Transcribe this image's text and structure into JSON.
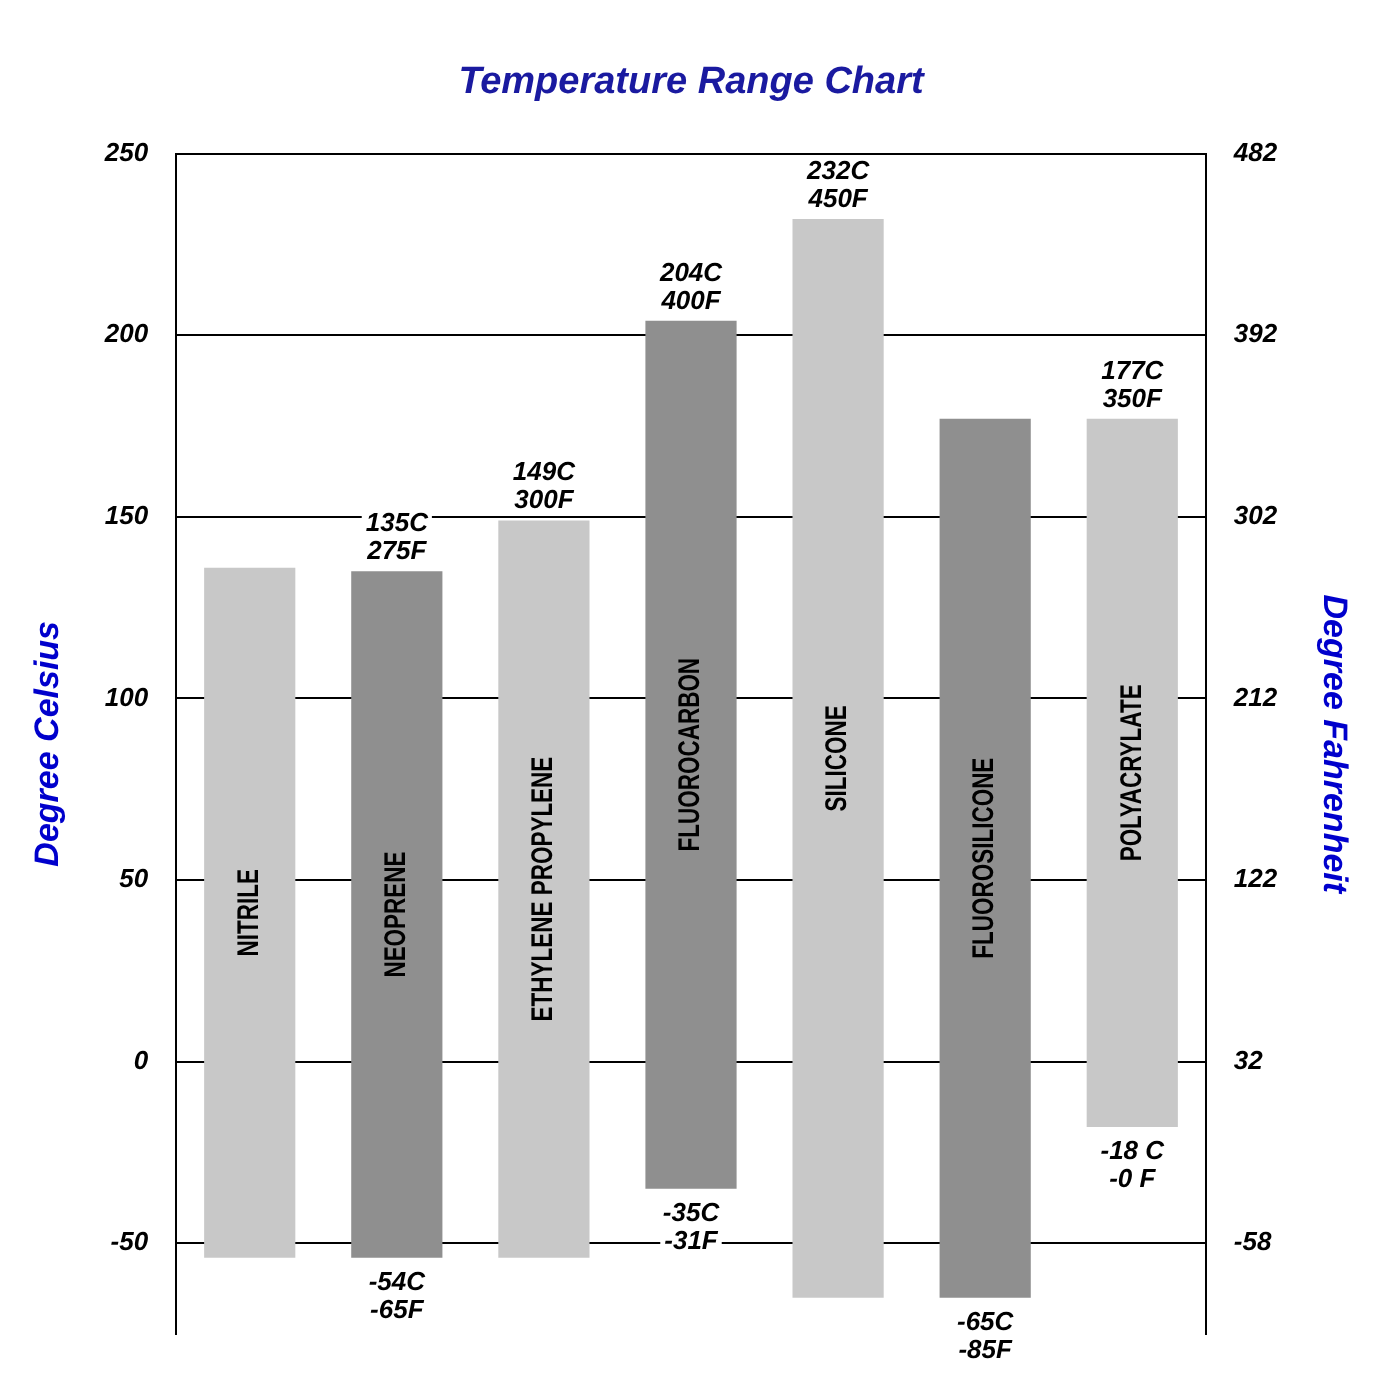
{
  "chart_data": {
    "type": "bar",
    "title": "Temperature Range Chart",
    "ylabel": "Degree Celsius",
    "y2label": "Degree Fahrenheit",
    "categories": [
      "NITRILE",
      "NEOPRENE",
      "ETHYLENE PROPYLENE",
      "FLUOROCARBON",
      "SILICONE",
      "FLUOROSILICONE",
      "POLYACRYLATE"
    ],
    "base": [
      -54,
      -54,
      -54,
      -35,
      -65,
      -65,
      -18
    ],
    "values": [
      190,
      189,
      203,
      239,
      297,
      242,
      195
    ],
    "colors": [
      "#c8c8c8",
      "#8f8f8f",
      "#c8c8c8",
      "#8f8f8f",
      "#c8c8c8",
      "#8f8f8f",
      "#c8c8c8"
    ],
    "ylim": [
      -75,
      250
    ],
    "yticks": [
      -50,
      0,
      50,
      100,
      150,
      200,
      250
    ],
    "y2lim": [
      -103,
      482
    ],
    "y2ticks": [
      -58,
      32,
      122,
      212,
      302,
      392,
      482
    ],
    "grid": "y",
    "legend": false,
    "annotations": [
      {
        "text": "135C\n275F",
        "x": "NEOPRENE",
        "y": 135
      },
      {
        "text": "149C\n300F",
        "x": "ETHYLENE PROPYLENE",
        "y": 149
      },
      {
        "text": "204C\n400F",
        "x": "FLUOROCARBON",
        "y": 204
      },
      {
        "text": "232C\n450F",
        "x": "SILICONE",
        "y": 232
      },
      {
        "text": "177C\n350F",
        "x": "POLYACRYLATE",
        "y": 177
      },
      {
        "text": "-54C\n-65F",
        "x": "NEOPRENE",
        "y": -54
      },
      {
        "text": "-35C\n-31F",
        "x": "FLUOROCARBON",
        "y": -35
      },
      {
        "text": "-65C\n-85F",
        "x": "FLUOROSILICONE",
        "y": -65
      },
      {
        "text": "-18 C\n-0 F",
        "x": "POLYACRYLATE",
        "y": -18
      }
    ]
  }
}
